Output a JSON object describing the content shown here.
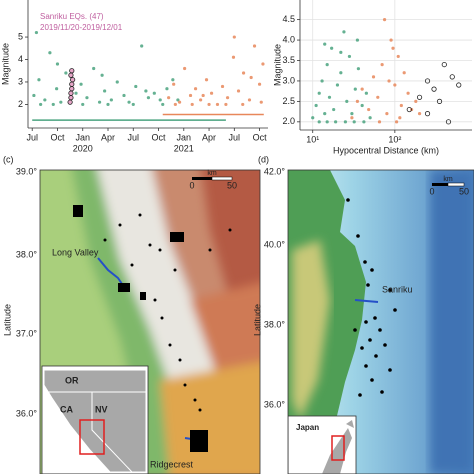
{
  "chart_data": [
    {
      "type": "scatter",
      "ylabel": "Magnitude",
      "annotations": [
        "Sanriku EQs. (47)",
        "2019/11/20-2019/12/01"
      ],
      "annotation_color": "#c060a0",
      "xlim": [
        -0.5,
        28
      ],
      "ylim": [
        0.95,
        6.65
      ],
      "xticks": [
        {
          "value": 0,
          "label": "Jul"
        },
        {
          "value": 3,
          "label": "Oct"
        },
        {
          "value": 6,
          "label": "Jan"
        },
        {
          "value": 9,
          "label": "Apr"
        },
        {
          "value": 12,
          "label": "Jul"
        },
        {
          "value": 15,
          "label": "Oct"
        },
        {
          "value": 18,
          "label": "Jan"
        },
        {
          "value": 21,
          "label": "Apr"
        },
        {
          "value": 24,
          "label": "Jul"
        },
        {
          "value": 27,
          "label": "Oct"
        }
      ],
      "year_labels": [
        {
          "value": 6,
          "label": "2020"
        },
        {
          "value": 18,
          "label": "2021"
        }
      ],
      "yticks": [
        2,
        3,
        4,
        5
      ],
      "grid": false,
      "series": [
        {
          "color": "#4aa37f",
          "x": [
            0.2,
            0.8,
            1.5,
            2.1,
            2.9,
            3.4,
            4.0,
            5.2,
            5.8,
            6.5,
            7.3,
            8.0,
            8.6,
            9.4,
            10.1,
            10.9,
            11.5,
            12.3,
            13.0,
            13.8,
            14.5,
            15.2,
            16.0,
            16.7,
            17.3,
            1.0,
            2.5,
            6.0,
            9.0,
            12.0,
            15.5,
            0.5,
            3.0,
            8.3,
            13.5
          ],
          "values": [
            2.4,
            3.1,
            2.2,
            4.3,
            2.7,
            2.1,
            3.4,
            2.5,
            2.9,
            2.3,
            3.6,
            2.1,
            2.6,
            2.2,
            3.0,
            2.4,
            2.1,
            2.8,
            4.6,
            2.3,
            2.5,
            2.2,
            2.7,
            3.1,
            2.2,
            2.0,
            2.0,
            2.0,
            2.0,
            2.0,
            2.0,
            5.2,
            3.8,
            3.3,
            2.6
          ]
        },
        {
          "color": "#e8875a",
          "x": [
            16.2,
            16.8,
            17.5,
            18.1,
            18.8,
            19.4,
            20.0,
            20.7,
            21.3,
            22.0,
            22.6,
            23.2,
            23.9,
            24.5,
            25.1,
            25.8,
            26.4,
            27.0,
            27.4,
            17.0,
            19.0,
            21.0,
            23.0,
            25.0,
            27.2,
            24.0,
            26.0,
            20.3
          ],
          "values": [
            2.3,
            2.9,
            2.1,
            3.6,
            2.4,
            2.7,
            2.2,
            3.1,
            2.5,
            2.0,
            2.8,
            2.3,
            4.1,
            2.6,
            3.4,
            2.2,
            4.6,
            2.9,
            3.8,
            2.0,
            2.0,
            2.0,
            2.0,
            2.0,
            2.1,
            5.0,
            3.2,
            2.4
          ]
        },
        {
          "color": "#222222",
          "fill": "#e6a6c8",
          "x": [
            4.5,
            4.6,
            4.6,
            4.7,
            4.7,
            4.8,
            4.6,
            4.7
          ],
          "values": [
            2.1,
            2.3,
            2.5,
            2.7,
            2.9,
            3.1,
            3.3,
            3.5
          ]
        }
      ],
      "ranges": [
        {
          "color": "#4aa37f",
          "start": 0,
          "end": 23,
          "value": 1.3
        },
        {
          "color": "#e8875a",
          "start": 15.5,
          "end": 27.5,
          "value": 1.55
        }
      ]
    },
    {
      "type": "scatter",
      "xlabel": "Hypocentral Distance (km)",
      "ylabel": "Magnitude",
      "xscale": "log",
      "xlim": [
        7,
        870
      ],
      "ylim": [
        1.8,
        4.98
      ],
      "xticks": [
        {
          "value": 10,
          "label": "10¹"
        },
        {
          "value": 100,
          "label": "10²"
        }
      ],
      "yticks": [
        {
          "value": 2,
          "label": "2.0"
        },
        {
          "value": 2.5,
          "label": "2.5"
        },
        {
          "value": 3,
          "label": "3.0"
        },
        {
          "value": 3.5,
          "label": "3.5"
        },
        {
          "value": 4,
          "label": "4.0"
        },
        {
          "value": 4.5,
          "label": "4.5"
        }
      ],
      "grid": true,
      "series": [
        {
          "color": "#4aa37f",
          "x": [
            10,
            11,
            12,
            13,
            14,
            15,
            16,
            17,
            18,
            20,
            22,
            24,
            26,
            28,
            30,
            33,
            36,
            40,
            45,
            50,
            12,
            15,
            19,
            25,
            32,
            42,
            14,
            22,
            35
          ],
          "values": [
            2.1,
            2.4,
            2.7,
            3.0,
            2.2,
            3.4,
            2.6,
            3.8,
            2.3,
            2.9,
            3.2,
            4.2,
            2.5,
            3.6,
            2.2,
            2.8,
            3.3,
            2.4,
            2.7,
            2.1,
            2.0,
            2.0,
            2.0,
            2.0,
            2.0,
            2.0,
            3.9,
            3.7,
            4.0
          ]
        },
        {
          "color": "#e8875a",
          "x": [
            30,
            35,
            40,
            48,
            55,
            62,
            70,
            80,
            90,
            100,
            110,
            120,
            130,
            145,
            160,
            180,
            200,
            75,
            95,
            105,
            115,
            85,
            65
          ],
          "values": [
            2.1,
            2.5,
            2.8,
            2.3,
            3.1,
            2.6,
            3.4,
            2.2,
            4.0,
            2.9,
            3.6,
            2.4,
            3.2,
            2.7,
            2.3,
            2.5,
            2.2,
            4.5,
            3.8,
            2.0,
            2.1,
            3.0,
            2.0
          ]
        },
        {
          "color": "#222222",
          "fill": "none",
          "x": [
            150,
            200,
            250,
            300,
            350,
            400,
            500,
            600,
            250,
            450
          ],
          "values": [
            2.3,
            2.6,
            3.0,
            2.8,
            2.5,
            3.4,
            3.1,
            2.9,
            2.2,
            2.0
          ]
        }
      ]
    }
  ],
  "maps": [
    {
      "panel": "(c)",
      "ylabel": "Latitude",
      "lat_labels": [
        "39.0°",
        "38.0°",
        "37.0°",
        "36.0°"
      ],
      "places": [
        "Long Valley",
        "Ridgecrest"
      ],
      "inset": [
        "OR",
        "CA",
        "NV"
      ],
      "scale": [
        "km",
        "0",
        "50"
      ]
    },
    {
      "panel": "(d)",
      "ylabel": "Latitude",
      "lat_labels": [
        "42.0°",
        "40.0°",
        "38.0°",
        "36.0°"
      ],
      "places": [
        "Sanriku"
      ],
      "inset": [
        "Japan"
      ],
      "scale": [
        "km",
        "0",
        "50"
      ]
    }
  ]
}
